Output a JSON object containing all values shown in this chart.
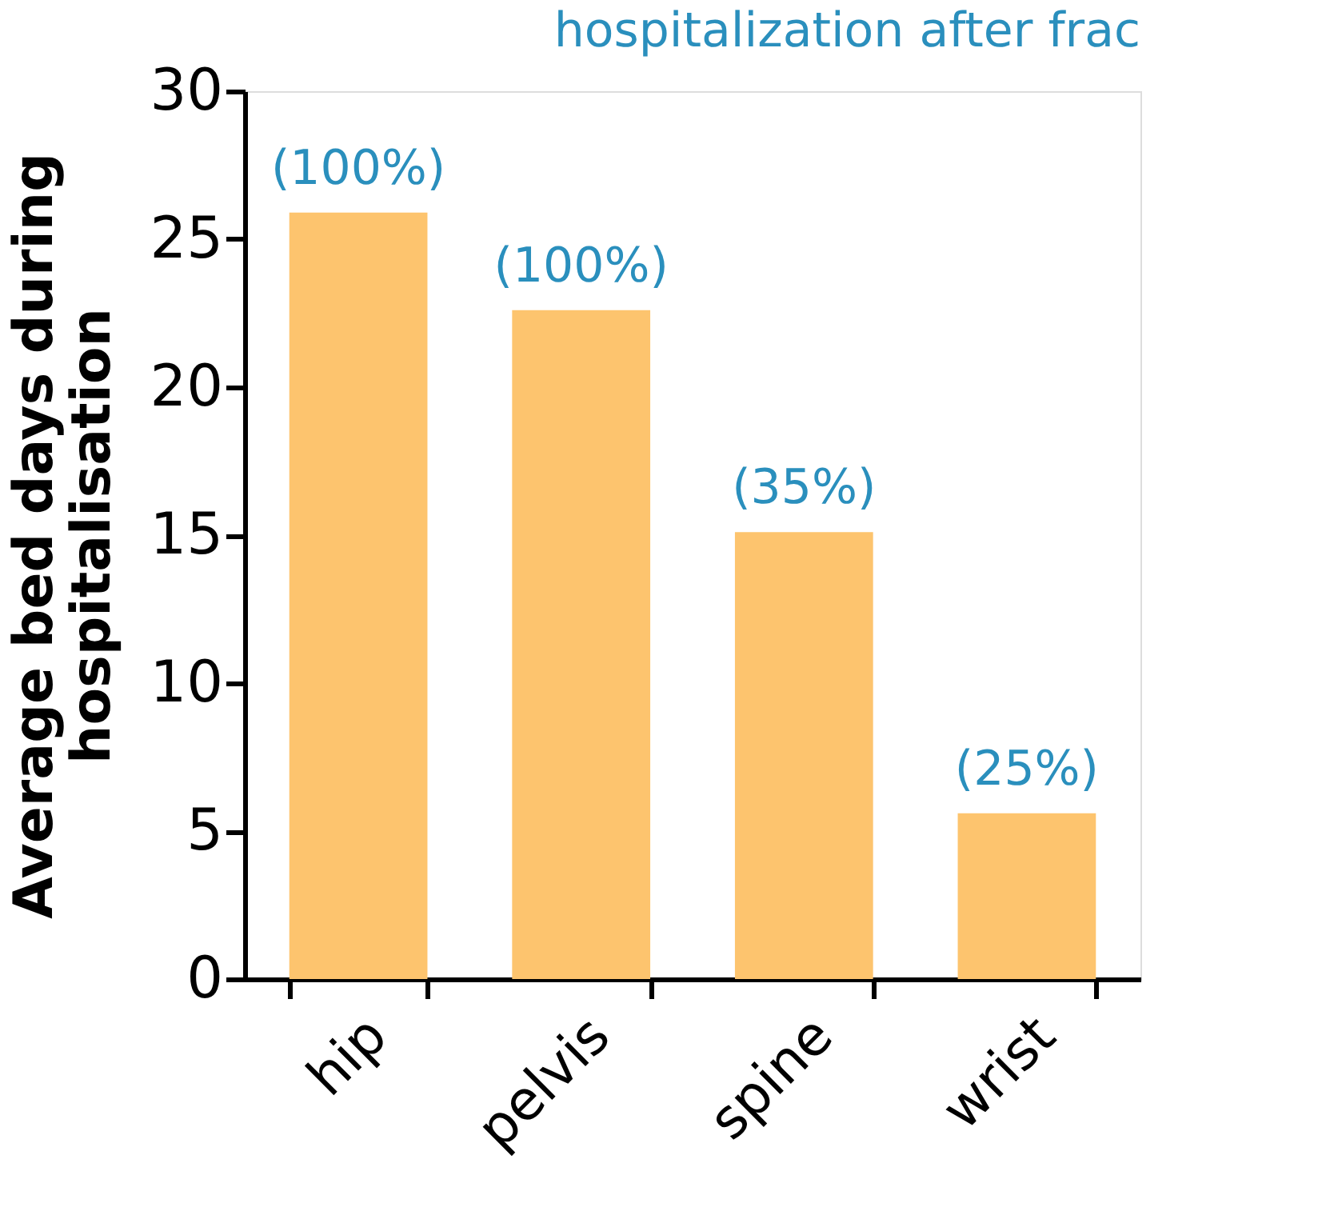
{
  "chart_data": {
    "type": "bar",
    "title": "hospitalization after frac",
    "categories": [
      "hip",
      "pelvis",
      "spine",
      "wrist"
    ],
    "values": [
      25.9,
      22.6,
      15.1,
      5.6
    ],
    "annotations": [
      {
        "text": "(100%)",
        "x": "hip",
        "y": 25.9
      },
      {
        "text": "(100%)",
        "x": "pelvis",
        "y": 22.6
      },
      {
        "text": "(35%)",
        "x": "spine",
        "y": 15.1
      },
      {
        "text": "(25%)",
        "x": "wrist",
        "y": 5.6
      }
    ],
    "colors": [
      "#fdc46e",
      "#fdc46e",
      "#fdc46e",
      "#fdc46e"
    ],
    "ylabel": "Average bed days during\nhospitalisation",
    "ylim": [
      0,
      30
    ],
    "yticks": [
      0,
      5,
      10,
      15,
      20,
      25,
      30
    ],
    "grid": false
  }
}
